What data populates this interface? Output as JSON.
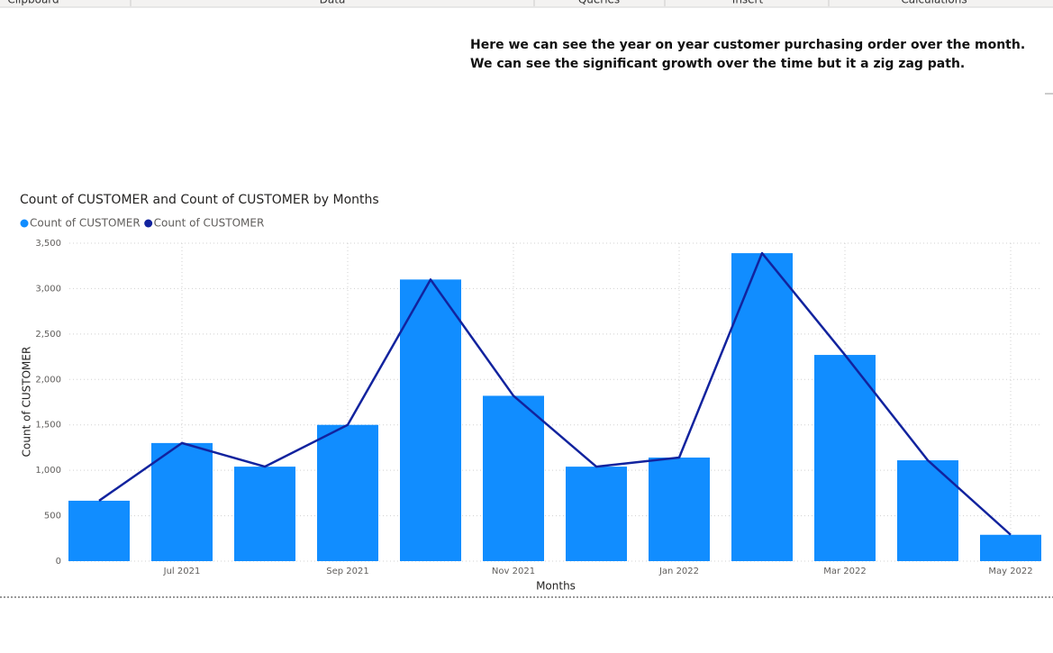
{
  "ribbon": [
    "Clipboard",
    "Data",
    "Queries",
    "Insert",
    "Calculations"
  ],
  "chart_data": {
    "type": "combo",
    "title": "Count of CUSTOMER and Count of CUSTOMER by Months",
    "annotations": [
      "Here we can see the year on year customer purchasing order over the month.",
      "We can see the significant growth over the time but it a zig zag path."
    ],
    "x_label": "Months",
    "y_label": "Count of CUSTOMER",
    "categories": [
      null,
      "Jul 2021",
      null,
      "Sep 2021",
      null,
      "Nov 2021",
      null,
      "Jan 2022",
      null,
      "Mar 2022",
      null,
      "May 2022"
    ],
    "series": [
      {
        "name": "Count of CUSTOMER",
        "type": "bar",
        "color": "#118dff",
        "values": [
          665,
          1300,
          1040,
          1500,
          3100,
          1820,
          1040,
          1140,
          3390,
          2270,
          1110,
          290
        ]
      },
      {
        "name": "Count of CUSTOMER",
        "type": "line",
        "color": "#12239e",
        "values": [
          665,
          1300,
          1040,
          1500,
          3100,
          1820,
          1040,
          1140,
          3390,
          2270,
          1110,
          290
        ]
      }
    ],
    "ylim": [
      0,
      3500
    ],
    "yticks": [
      0,
      500,
      {
        "value": 1000,
        "label": "1,000"
      },
      {
        "value": 1500,
        "label": "1,500"
      },
      {
        "value": 2000,
        "label": "2,000"
      },
      {
        "value": 2500,
        "label": "2,500"
      },
      {
        "value": 3000,
        "label": "3,000"
      },
      {
        "value": 3500,
        "label": "3,500"
      }
    ],
    "grid": true,
    "legend": "top-left"
  }
}
